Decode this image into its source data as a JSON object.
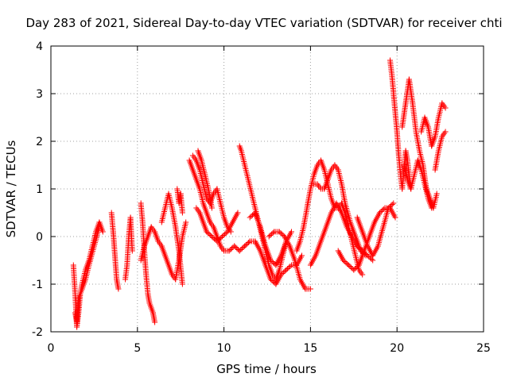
{
  "chart_data": {
    "type": "scatter",
    "title": "Day 283 of 2021, Sidereal Day-to-day VTEC variation (SDTVAR) for receiver chti",
    "xlabel": "GPS time / hours",
    "ylabel": "SDTVAR / TECUs",
    "xlim": [
      0,
      25
    ],
    "ylim": [
      -2,
      4
    ],
    "xticks": [
      "0",
      "5",
      "10",
      "15",
      "20",
      "25"
    ],
    "yticks": [
      "-2",
      "-1",
      "0",
      "1",
      "2",
      "3",
      "4"
    ],
    "grid": true,
    "marker": "+",
    "series": [
      {
        "name": "SDTVAR",
        "color": "#ff0000",
        "tracks": [
          {
            "x": [
              1.3,
              1.4,
              1.5,
              1.6,
              1.7,
              1.8,
              2.0,
              2.2,
              2.4,
              2.6,
              2.8,
              3.0
            ],
            "y": [
              -0.6,
              -1.2,
              -1.9,
              -1.6,
              -1.2,
              -1.0,
              -0.7,
              -0.5,
              -0.2,
              0.1,
              0.3,
              0.1
            ]
          },
          {
            "x": [
              1.4,
              1.5,
              1.6,
              1.8,
              2.0,
              2.2,
              2.5,
              2.8
            ],
            "y": [
              -1.6,
              -1.8,
              -1.3,
              -1.1,
              -0.9,
              -0.6,
              -0.2,
              0.2
            ]
          },
          {
            "x": [
              3.5,
              3.6,
              3.7,
              3.8,
              3.9
            ],
            "y": [
              0.5,
              0.1,
              -0.4,
              -0.9,
              -1.1
            ]
          },
          {
            "x": [
              4.3,
              4.4,
              4.5,
              4.6,
              4.7
            ],
            "y": [
              -0.9,
              -0.6,
              0.0,
              0.4,
              -0.3
            ]
          },
          {
            "x": [
              5.2,
              5.3,
              5.4,
              5.5,
              5.6,
              5.7,
              5.8,
              5.9,
              6.0
            ],
            "y": [
              0.7,
              0.3,
              -0.3,
              -0.8,
              -1.2,
              -1.4,
              -1.5,
              -1.6,
              -1.8
            ]
          },
          {
            "x": [
              5.2,
              5.4,
              5.6,
              5.8,
              6.0,
              6.2,
              6.4,
              6.6,
              6.8,
              7.0,
              7.2,
              7.4,
              7.6,
              7.8
            ],
            "y": [
              -0.5,
              -0.2,
              0.0,
              0.2,
              0.1,
              -0.1,
              -0.2,
              -0.4,
              -0.6,
              -0.8,
              -0.9,
              -0.5,
              0.0,
              0.3
            ]
          },
          {
            "x": [
              6.4,
              6.6,
              6.8,
              7.0,
              7.2,
              7.4,
              7.6
            ],
            "y": [
              0.3,
              0.6,
              0.9,
              0.6,
              0.2,
              -0.3,
              -1.0
            ]
          },
          {
            "x": [
              7.3,
              7.4,
              7.5,
              7.6
            ],
            "y": [
              1.0,
              0.7,
              0.9,
              0.5
            ]
          },
          {
            "x": [
              8.0,
              8.2,
              8.4,
              8.6,
              8.8,
              9.0,
              9.2,
              9.4,
              9.6,
              9.8,
              10.0,
              10.3,
              10.6,
              10.9,
              11.2,
              11.5,
              11.8,
              12.1,
              12.4,
              12.7,
              13.0,
              13.3,
              13.6,
              13.9,
              14.2,
              14.5
            ],
            "y": [
              1.6,
              1.4,
              1.2,
              1.0,
              0.7,
              0.5,
              0.3,
              0.2,
              0.0,
              -0.2,
              -0.3,
              -0.3,
              -0.2,
              -0.3,
              -0.2,
              -0.1,
              -0.1,
              -0.3,
              -0.6,
              -0.9,
              -1.0,
              -0.8,
              -0.7,
              -0.6,
              -0.6,
              -0.4
            ]
          },
          {
            "x": [
              8.2,
              8.4,
              8.6,
              8.8,
              9.0,
              9.2,
              9.4,
              9.6,
              9.8,
              10.0,
              10.2,
              10.4
            ],
            "y": [
              1.7,
              1.6,
              1.4,
              1.1,
              0.8,
              0.7,
              0.9,
              1.0,
              0.7,
              0.4,
              0.2,
              0.1
            ]
          },
          {
            "x": [
              8.4,
              8.6,
              8.8,
              9.0,
              9.3,
              9.6,
              9.9,
              10.2,
              10.5,
              10.8
            ],
            "y": [
              0.6,
              0.5,
              0.3,
              0.1,
              0.0,
              -0.1,
              0.0,
              0.1,
              0.3,
              0.5
            ]
          },
          {
            "x": [
              8.5,
              8.7,
              8.9,
              9.1,
              9.3
            ],
            "y": [
              1.8,
              1.6,
              1.3,
              1.0,
              0.6
            ]
          },
          {
            "x": [
              10.9,
              11.0,
              11.2,
              11.4,
              11.6,
              11.8,
              12.0,
              12.2,
              12.4,
              12.6,
              12.8,
              13.0,
              13.2,
              13.4,
              13.6
            ],
            "y": [
              1.9,
              1.8,
              1.5,
              1.2,
              0.9,
              0.6,
              0.3,
              0.0,
              -0.3,
              -0.6,
              -0.8,
              -0.9,
              -0.7,
              -0.4,
              -0.1
            ]
          },
          {
            "x": [
              11.5,
              11.8,
              12.1,
              12.4,
              12.7,
              13.0,
              13.3,
              13.6,
              13.9
            ],
            "y": [
              0.4,
              0.5,
              0.2,
              -0.2,
              -0.5,
              -0.6,
              -0.4,
              -0.1,
              0.1
            ]
          },
          {
            "x": [
              12.6,
              12.9,
              13.2,
              13.5,
              13.8,
              14.1,
              14.4,
              14.7,
              15.0
            ],
            "y": [
              0.0,
              0.1,
              0.1,
              0.0,
              -0.2,
              -0.5,
              -0.9,
              -1.1,
              -1.1
            ]
          },
          {
            "x": [
              14.2,
              14.4,
              14.6,
              14.8,
              15.0,
              15.2,
              15.4,
              15.6,
              15.8,
              16.0,
              16.2,
              16.4,
              16.6,
              16.8,
              17.0,
              17.2,
              17.4,
              17.6,
              17.8,
              18.0
            ],
            "y": [
              -0.3,
              -0.1,
              0.2,
              0.6,
              1.0,
              1.3,
              1.5,
              1.6,
              1.4,
              1.1,
              0.8,
              0.6,
              0.6,
              0.7,
              0.5,
              0.2,
              -0.1,
              -0.4,
              -0.7,
              -0.8
            ]
          },
          {
            "x": [
              15.2,
              15.4,
              15.6,
              15.8,
              16.0,
              16.2,
              16.4,
              16.6,
              16.8,
              17.0,
              17.3,
              17.6,
              17.9,
              18.2
            ],
            "y": [
              1.1,
              1.1,
              1.0,
              1.0,
              1.2,
              1.4,
              1.5,
              1.4,
              1.1,
              0.7,
              0.3,
              0.0,
              -0.3,
              -0.4
            ]
          },
          {
            "x": [
              15.0,
              15.3,
              15.6,
              15.9,
              16.2,
              16.5,
              16.8,
              17.1,
              17.4,
              17.7,
              18.0,
              18.3,
              18.6
            ],
            "y": [
              -0.6,
              -0.4,
              -0.1,
              0.2,
              0.5,
              0.7,
              0.5,
              0.2,
              0.0,
              -0.2,
              -0.3,
              -0.4,
              -0.5
            ]
          },
          {
            "x": [
              16.6,
              16.9,
              17.2,
              17.5,
              17.8,
              18.1,
              18.4,
              18.7,
              19.0,
              19.3,
              19.6,
              19.9
            ],
            "y": [
              -0.3,
              -0.5,
              -0.6,
              -0.7,
              -0.6,
              -0.3,
              0.0,
              0.3,
              0.5,
              0.6,
              0.6,
              0.4
            ]
          },
          {
            "x": [
              17.7,
              18.0,
              18.3,
              18.6,
              18.9,
              19.2,
              19.5,
              19.8
            ],
            "y": [
              0.4,
              0.1,
              -0.2,
              -0.4,
              -0.2,
              0.2,
              0.6,
              0.7
            ]
          },
          {
            "x": [
              19.6,
              19.7,
              19.8,
              19.9,
              20.0,
              20.1,
              20.2,
              20.3,
              20.4,
              20.5,
              20.6,
              20.7,
              20.8
            ],
            "y": [
              3.7,
              3.4,
              3.0,
              2.6,
              2.2,
              1.7,
              1.3,
              1.0,
              1.4,
              1.8,
              1.6,
              1.3,
              1.0
            ]
          },
          {
            "x": [
              20.3,
              20.5,
              20.7,
              20.9,
              21.1,
              21.3,
              21.5,
              21.7,
              21.9,
              22.1,
              22.3
            ],
            "y": [
              2.3,
              2.8,
              3.3,
              2.8,
              2.2,
              1.8,
              1.5,
              1.0,
              0.8,
              0.6,
              0.9
            ]
          },
          {
            "x": [
              20.4,
              20.6,
              20.8,
              21.0,
              21.2,
              21.4,
              21.6,
              21.8,
              22.0
            ],
            "y": [
              1.5,
              1.2,
              1.0,
              1.3,
              1.6,
              1.4,
              1.1,
              0.8,
              0.6
            ]
          },
          {
            "x": [
              21.4,
              21.6,
              21.8,
              22.0,
              22.2,
              22.4,
              22.6,
              22.8
            ],
            "y": [
              2.2,
              2.5,
              2.3,
              1.9,
              2.1,
              2.5,
              2.8,
              2.7
            ]
          },
          {
            "x": [
              22.2,
              22.4,
              22.6,
              22.8
            ],
            "y": [
              1.4,
              1.8,
              2.1,
              2.2
            ]
          }
        ]
      }
    ]
  }
}
